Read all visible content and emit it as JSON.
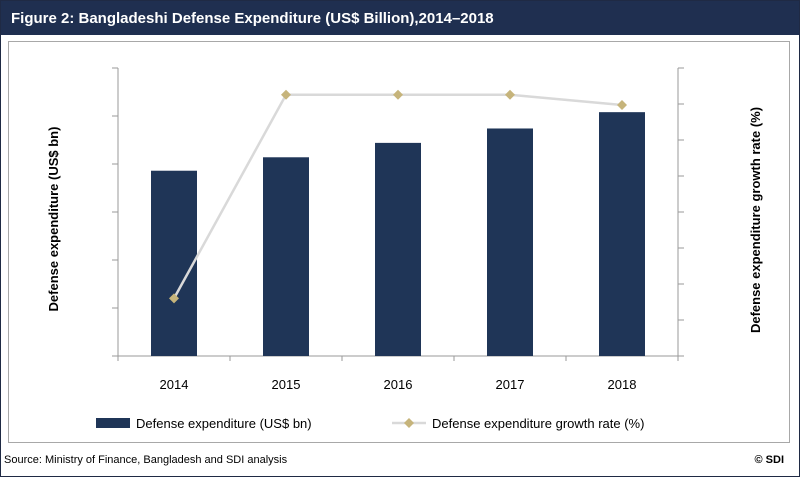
{
  "title": "Figure 2: Bangladeshi Defense Expenditure (US$ Billion),2014–2018",
  "source": "Source: Ministry of Finance, Bangladesh and SDI analysis",
  "copyright": "© SDI",
  "colors": {
    "bar": "#1f3557",
    "line": "#d9d9d9",
    "marker": "#c6b47b",
    "title_bg": "#1f2f50"
  },
  "chart_data": {
    "type": "bar",
    "categories": [
      "2014",
      "2015",
      "2016",
      "2017",
      "2018"
    ],
    "ylabel": "Defense expenditure (US$ bn)",
    "y2label": "Defense expenditure growth rate (%)",
    "ylim": [
      0,
      3
    ],
    "y2lim": [
      0,
      14
    ],
    "series": [
      {
        "name": "Defense expenditure (US$ bn)",
        "kind": "bar",
        "axis": "left",
        "values": [
          1.93,
          2.07,
          2.22,
          2.37,
          2.54
        ]
      },
      {
        "name": "Defense expenditure growth rate (%)",
        "kind": "line",
        "axis": "right",
        "values": [
          2.8,
          12.7,
          12.7,
          12.7,
          12.2
        ]
      }
    ],
    "grid": false,
    "legend": "bottom"
  }
}
